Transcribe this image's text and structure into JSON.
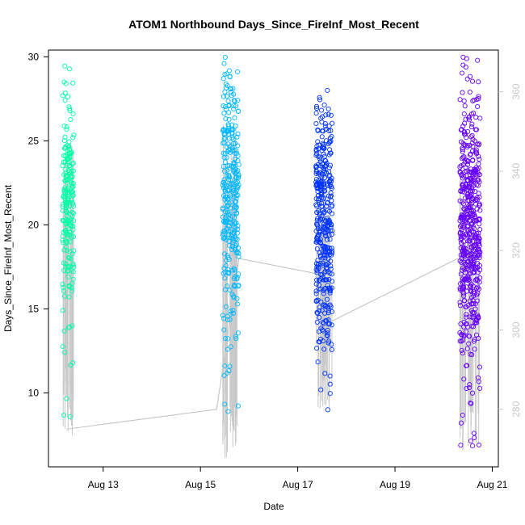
{
  "chart_data": {
    "type": "scatter",
    "title": "ATOM1 Northbound Days_Since_FireInf_Most_Recent",
    "xlabel": "Date",
    "ylabel": "Days_Since_FireInf_Most_Recent",
    "x_ticks": [
      "Aug 13",
      "Aug 15",
      "Aug 17",
      "Aug 19",
      "Aug 21"
    ],
    "xlim": [
      "2021-08-11T21:00",
      "2021-08-21T03:00"
    ],
    "ylim": [
      5.6,
      30.4
    ],
    "y_ticks": [
      10,
      15,
      20,
      25,
      30
    ],
    "y2_ticks": [
      280,
      300,
      320,
      340,
      360
    ],
    "y2lim": [
      265.5,
      370.5
    ],
    "grid": false,
    "groups": [
      {
        "date": "2021-08-12",
        "color": "#00ffa6",
        "x_range": [
          "2021-08-12T04:00",
          "2021-08-12T09:30"
        ],
        "y_range": [
          7.5,
          29.9
        ],
        "cluster_center": 21.0
      },
      {
        "date": "2021-08-15",
        "color": "#00b8ff",
        "x_range": [
          "2021-08-15T11:00",
          "2021-08-15T19:00"
        ],
        "y_range": [
          6.0,
          30.0
        ],
        "cluster_center": 22.0
      },
      {
        "date": "2021-08-17",
        "color": "#0033ff",
        "x_range": [
          "2021-08-17T09:00",
          "2021-08-17T17:00"
        ],
        "y_range": [
          9.0,
          28.0
        ],
        "cluster_center": 20.0
      },
      {
        "date": "2021-08-20",
        "color": "#6600ff",
        "x_range": [
          "2021-08-20T08:00",
          "2021-08-20T18:00"
        ],
        "y_range": [
          6.5,
          30.0
        ],
        "cluster_center": 20.0
      }
    ],
    "right_axis_line": {
      "color": "#c0c0c0",
      "y2_axis": true,
      "points": [
        [
          "2021-08-12T06:00",
          275
        ],
        [
          "2021-08-15T08:00",
          280
        ],
        [
          "2021-08-15T19:00",
          318
        ],
        [
          "2021-08-17T11:00",
          314
        ],
        [
          "2021-08-17T16:00",
          302
        ],
        [
          "2021-08-20T07:00",
          318
        ]
      ]
    }
  }
}
